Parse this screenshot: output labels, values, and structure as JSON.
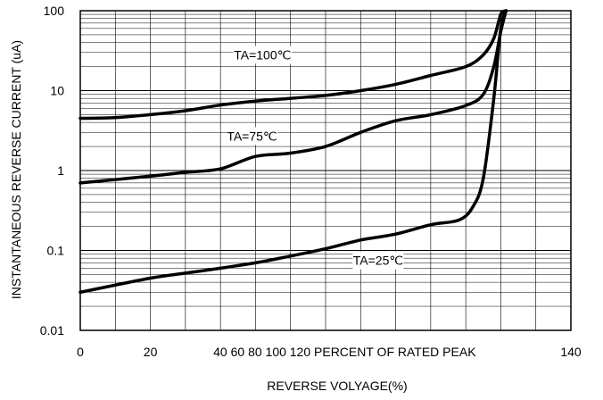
{
  "chart_data": {
    "type": "line",
    "title": "",
    "xlabel": "REVERSE VOLYAGE(%)",
    "ylabel": "INSTANTANEOUS REVERSE CURRENT (uA)",
    "x_scale": "linear",
    "y_scale": "log",
    "xlim": [
      0,
      140
    ],
    "ylim": [
      0.01,
      100
    ],
    "x_tick_labels": [
      "0",
      "20",
      "40 60 80 100 120 PERCENT OF RATED PEAK",
      "140"
    ],
    "x_tick_values": [
      0,
      20,
      40,
      140
    ],
    "y_tick_labels": [
      "100",
      "10",
      "1",
      "0.1",
      "0.01"
    ],
    "y_tick_values": [
      100,
      10,
      1,
      0.1,
      0.01
    ],
    "grid": true,
    "series": [
      {
        "name": "TA=100℃",
        "x": [
          0,
          10,
          20,
          30,
          40,
          50,
          60,
          70,
          80,
          90,
          100,
          110,
          115,
          118,
          120,
          121.5
        ],
        "y": [
          4.5,
          4.6,
          5.0,
          5.6,
          6.6,
          7.4,
          8.0,
          8.7,
          10.0,
          12.0,
          15.5,
          20,
          28,
          45,
          90,
          100
        ]
      },
      {
        "name": "TA=75℃",
        "x": [
          0,
          20,
          30,
          40,
          50,
          60,
          70,
          80,
          90,
          100,
          110,
          115,
          118,
          120,
          121.5
        ],
        "y": [
          0.7,
          0.85,
          0.95,
          1.05,
          1.5,
          1.65,
          2.0,
          3.0,
          4.2,
          5.0,
          6.5,
          9,
          20,
          55,
          100
        ]
      },
      {
        "name": "TA=25℃",
        "x": [
          0,
          20,
          30,
          40,
          50,
          60,
          70,
          80,
          90,
          100,
          108,
          112,
          115,
          118,
          120,
          121.5
        ],
        "y": [
          0.03,
          0.045,
          0.052,
          0.06,
          0.07,
          0.085,
          0.105,
          0.135,
          0.16,
          0.21,
          0.24,
          0.35,
          0.8,
          8,
          60,
          100
        ]
      }
    ]
  }
}
